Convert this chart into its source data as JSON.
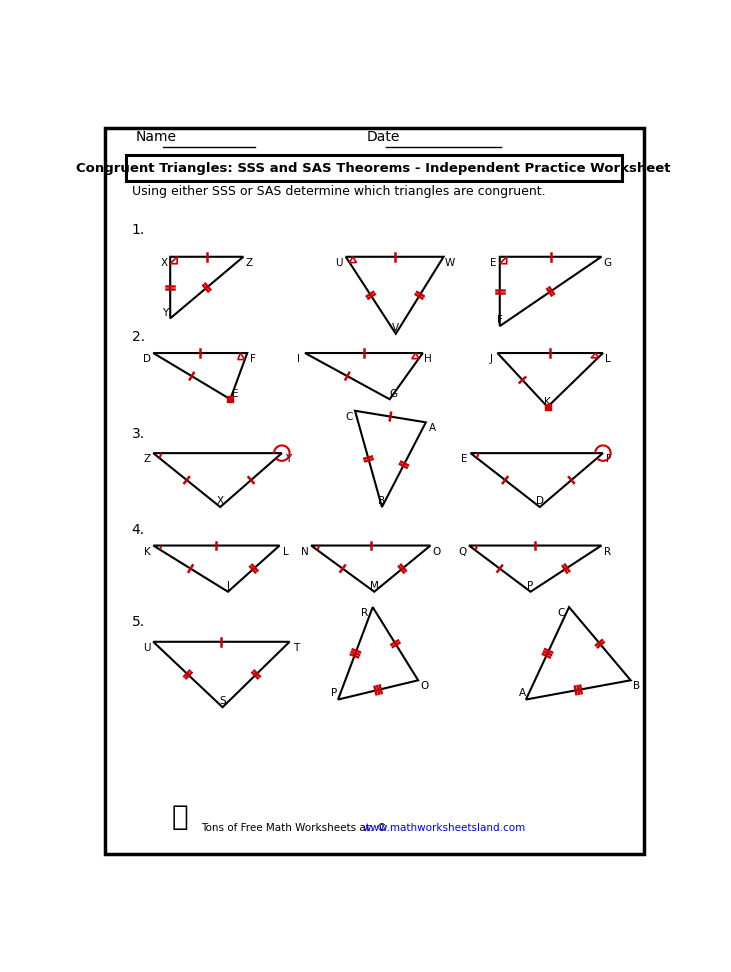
{
  "title": "Congruent Triangles: SSS and SAS Theorems - Independent Practice Worksheet",
  "subtitle": "Using either SSS or SAS determine which triangles are congruent.",
  "footer_text": "Tons of Free Math Worksheets at: © ",
  "footer_url": "www.mathworksheetsland.com",
  "bg": "#ffffff",
  "black": "#000000",
  "red": "#cc0000"
}
